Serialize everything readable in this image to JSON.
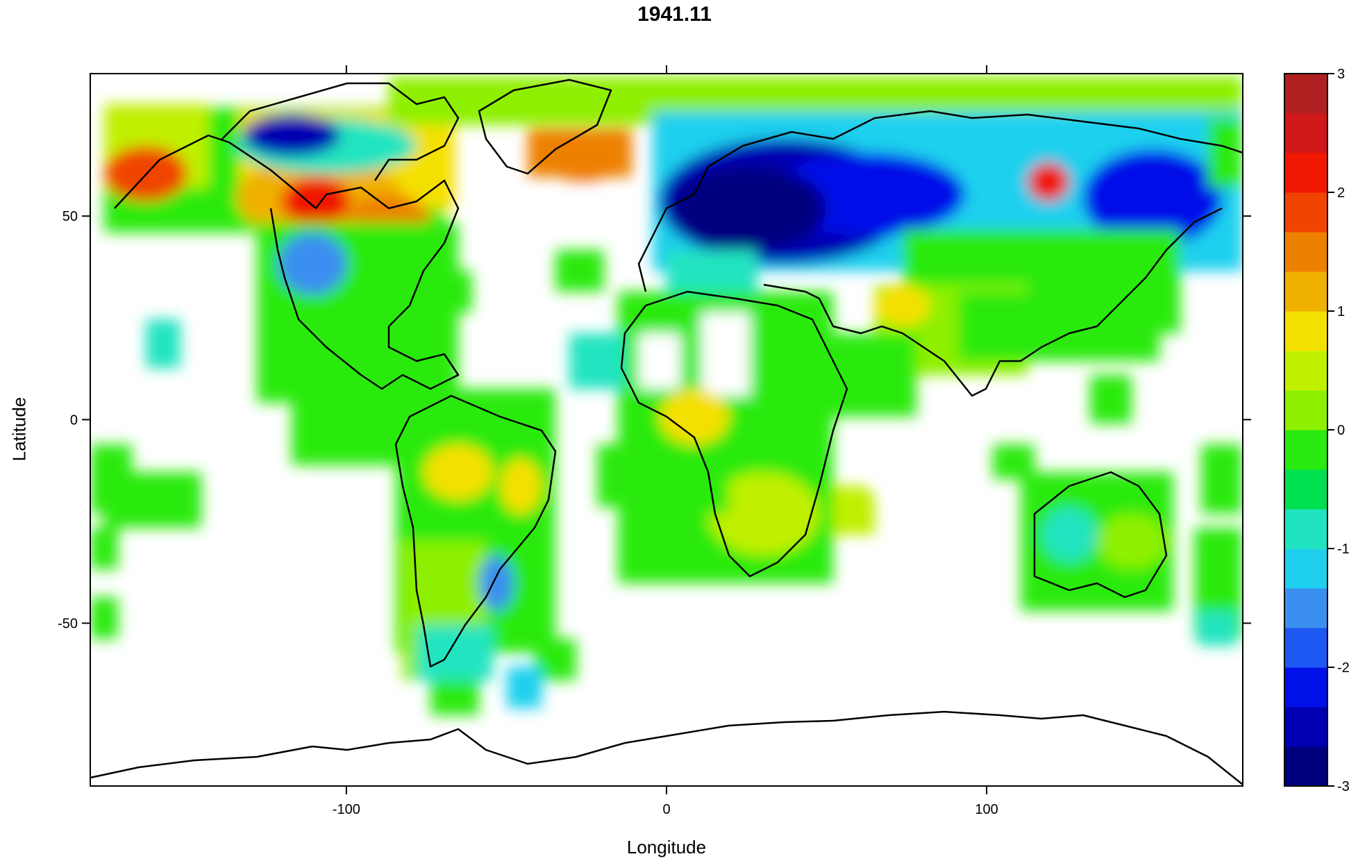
{
  "title": "1941.11",
  "xlabel": "Longitude",
  "ylabel": "Latitude",
  "x_ticks": [
    {
      "value": -100,
      "label": "-100"
    },
    {
      "value": 0,
      "label": "0"
    },
    {
      "value": 100,
      "label": "100"
    }
  ],
  "y_ticks": [
    {
      "value": 50,
      "label": "50"
    },
    {
      "value": 0,
      "label": "0"
    },
    {
      "value": -50,
      "label": "-50"
    }
  ],
  "colorbar": {
    "min": -3,
    "max": 3,
    "tick_labels": [
      "3",
      "2",
      "1",
      "0",
      "-1",
      "-2",
      "-3"
    ],
    "tick_values": [
      3,
      2,
      1,
      0,
      -1,
      -2,
      -3
    ],
    "colors": [
      "#00007F",
      "#0000B2",
      "#0010E8",
      "#1E58F2",
      "#3A8FF0",
      "#1FD0EE",
      "#20E4C0",
      "#00E050",
      "#2AEA10",
      "#8EF000",
      "#C0F000",
      "#F4E000",
      "#F0B000",
      "#EE8000",
      "#F04400",
      "#F01800",
      "#D01818",
      "#B02020"
    ]
  },
  "chart_data": {
    "type": "heatmap",
    "title": "1941.11",
    "xlabel": "Longitude",
    "ylabel": "Latitude",
    "xlim": [
      -180,
      180
    ],
    "ylim": [
      -90,
      85
    ],
    "grid": false,
    "legend": "right colorbar, range -3 to 3"
  }
}
